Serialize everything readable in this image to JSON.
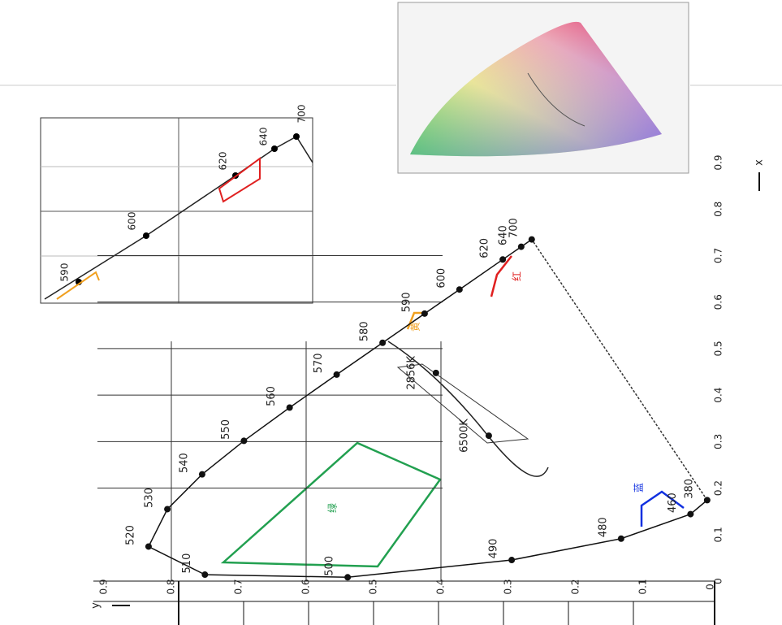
{
  "chart_data": {
    "type": "line",
    "x_label": "x",
    "y_label": "y",
    "x": [
      0.1741,
      0.144,
      0.0913,
      0.0454,
      0.0082,
      0.0139,
      0.0743,
      0.1547,
      0.2296,
      0.3016,
      0.3731,
      0.4441,
      0.5125,
      0.5752,
      0.627,
      0.6915,
      0.719,
      0.7347
    ],
    "values": [
      0.005,
      0.0297,
      0.1327,
      0.295,
      0.5384,
      0.7502,
      0.8338,
      0.8059,
      0.7543,
      0.6923,
      0.6245,
      0.5547,
      0.4866,
      0.4242,
      0.3725,
      0.3083,
      0.2809,
      0.2653
    ],
    "point_labels": [
      "380",
      "460",
      "480",
      "490",
      "500",
      "510",
      "520",
      "530",
      "540",
      "550",
      "560",
      "570",
      "580",
      "590",
      "600",
      "620",
      "640",
      "700"
    ],
    "color": "#111",
    "xlim": [
      0,
      0.9
    ],
    "ylim": [
      0,
      0.9
    ],
    "xticks": [
      0,
      0.1,
      0.2,
      0.3,
      0.4,
      0.5,
      0.6,
      0.7,
      0.8,
      0.9
    ],
    "yticks": [
      0,
      0.1,
      0.2,
      0.3,
      0.4,
      0.5,
      0.6,
      0.7,
      0.8,
      0.9
    ],
    "grid": true,
    "white_points": {
      "labels": [
        "2856K",
        "6500K"
      ],
      "x": [
        0.4476,
        0.3127
      ],
      "y": [
        0.4074,
        0.329
      ]
    },
    "region_labels": [
      "绿",
      "蓝",
      "红",
      "黄"
    ],
    "inset_labels": [
      "590",
      "600",
      "620",
      "640",
      "700"
    ]
  }
}
